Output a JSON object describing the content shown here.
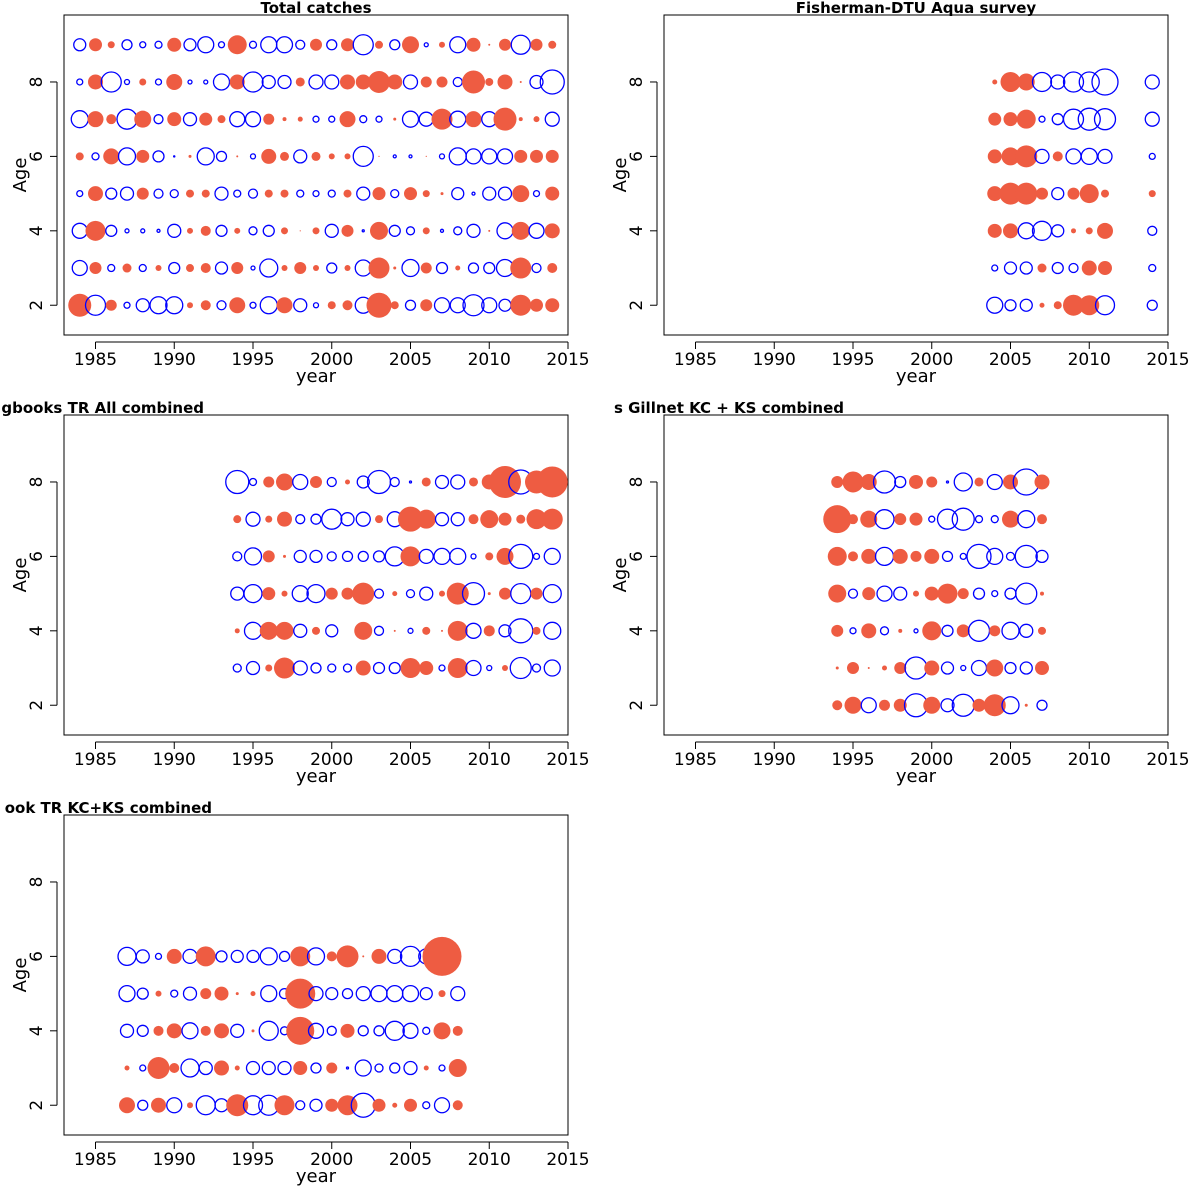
{
  "colors": {
    "positive": "#EE5C42",
    "negative": "#0000FF"
  },
  "chart_data": [
    {
      "type": "scatter",
      "style": "bubble",
      "title": "Total catches",
      "title_align": "center",
      "xlabel": "year",
      "ylabel": "Age",
      "xlim": [
        1983,
        2015
      ],
      "ylim": [
        1.2,
        9.8
      ],
      "xticks": [
        1985,
        1990,
        1995,
        2000,
        2005,
        2010,
        2015
      ],
      "yticks": [
        2,
        4,
        6,
        8
      ],
      "years": [
        1984,
        1985,
        1986,
        1987,
        1988,
        1989,
        1990,
        1991,
        1992,
        1993,
        1994,
        1995,
        1996,
        1997,
        1998,
        1999,
        2000,
        2001,
        2002,
        2003,
        2004,
        2005,
        2006,
        2007,
        2008,
        2009,
        2010,
        2011,
        2012,
        2013,
        2014
      ],
      "ages": [
        2,
        3,
        4,
        5,
        6,
        7,
        8,
        9
      ],
      "residuals": [
        [
          2.3,
          -2.0,
          1.1,
          -0.6,
          -1.3,
          -1.7,
          -1.7,
          0.6,
          1.0,
          -0.9,
          1.6,
          -0.6,
          -1.7,
          1.6,
          -1.3,
          -0.5,
          0.8,
          1.0,
          -1.6,
          2.5,
          0.8,
          -1.0,
          1.2,
          -1.5,
          -1.5,
          -2.1,
          -1.5,
          -1.2,
          2.1,
          1.3,
          1.4
        ],
        [
          -1.5,
          1.2,
          -0.7,
          0.9,
          -0.7,
          0.6,
          -1.1,
          0.8,
          1.0,
          -1.2,
          1.2,
          -0.4,
          -1.8,
          0.6,
          1.2,
          0.6,
          -1.0,
          0.6,
          -1.6,
          2.1,
          0.3,
          -1.7,
          1.1,
          -1.1,
          0.5,
          -1.0,
          -1.1,
          -1.7,
          2.1,
          -0.9,
          1.0
        ],
        [
          -1.5,
          2.0,
          -1.1,
          -0.4,
          -0.4,
          -0.3,
          -1.3,
          0.6,
          1.0,
          -1.1,
          0.6,
          -0.8,
          -1.1,
          0.7,
          0.1,
          0.7,
          -1.3,
          1.2,
          -0.2,
          1.8,
          -1.1,
          -0.8,
          0.7,
          -0.3,
          -0.8,
          -1.3,
          0.2,
          -1.6,
          1.8,
          -1.5,
          1.5
        ],
        [
          -0.6,
          1.5,
          -1.1,
          -1.3,
          1.2,
          -0.9,
          -0.8,
          0.8,
          0.8,
          -1.3,
          -0.7,
          -0.9,
          0.8,
          0.8,
          -0.7,
          -0.6,
          -0.7,
          0.8,
          -1.3,
          1.3,
          -0.8,
          1.3,
          0.7,
          0.3,
          -1.2,
          -0.3,
          -1.3,
          -1.3,
          1.7,
          -0.6,
          1.4
        ],
        [
          0.8,
          -0.7,
          1.6,
          -1.7,
          1.3,
          -1.1,
          -0.1,
          0.3,
          -1.7,
          -1.0,
          0.2,
          -0.5,
          1.5,
          0.9,
          -1.3,
          0.9,
          0.6,
          0.6,
          -2.0,
          0.1,
          -0.3,
          -0.3,
          0.1,
          -0.5,
          -1.7,
          -1.5,
          -1.5,
          -1.5,
          1.3,
          1.3,
          1.3
        ],
        [
          -1.7,
          1.6,
          1.0,
          -2.0,
          1.7,
          -0.9,
          1.4,
          -1.3,
          1.3,
          0.8,
          -1.5,
          -1.5,
          1.1,
          0.4,
          0.5,
          -0.6,
          -0.6,
          1.6,
          -0.7,
          -0.6,
          0.3,
          -1.6,
          -1.4,
          2.1,
          -1.6,
          1.6,
          -1.5,
          2.3,
          0.4,
          0.6,
          -1.4
        ],
        [
          -0.6,
          1.5,
          -2.0,
          -0.5,
          0.7,
          -0.6,
          1.6,
          -0.4,
          -0.4,
          -1.6,
          1.5,
          -2.0,
          -1.3,
          -1.3,
          0.9,
          -1.4,
          -1.4,
          1.5,
          1.5,
          2.2,
          1.5,
          -1.4,
          1.1,
          1.1,
          -0.9,
          2.3,
          0.8,
          1.5,
          0.2,
          -1.3,
          -2.4
        ],
        [
          -1.2,
          1.3,
          0.7,
          -1.0,
          -0.6,
          -0.7,
          1.4,
          -1.2,
          -1.6,
          -0.6,
          1.9,
          -0.7,
          -1.6,
          -1.6,
          -0.9,
          1.2,
          -1.0,
          1.3,
          -2.0,
          0.8,
          -1.0,
          1.7,
          -0.4,
          0.6,
          -1.6,
          1.4,
          0.2,
          1.2,
          -1.9,
          1.2,
          0.8
        ]
      ]
    },
    {
      "type": "scatter",
      "style": "bubble",
      "title": "Fisherman-DTU Aqua survey",
      "title_align": "center",
      "xlabel": "year",
      "ylabel": "Age",
      "xlim": [
        1983,
        2015
      ],
      "ylim": [
        1.2,
        9.8
      ],
      "xticks": [
        1985,
        1990,
        1995,
        2000,
        2005,
        2010,
        2015
      ],
      "yticks": [
        2,
        4,
        6,
        8
      ],
      "years": [
        2004,
        2005,
        2006,
        2007,
        2008,
        2009,
        2010,
        2011,
        2014
      ],
      "ages": [
        2,
        3,
        4,
        5,
        6,
        7,
        8
      ],
      "residuals": [
        [
          -1.6,
          -1.1,
          -1.2,
          0.5,
          0.8,
          2.1,
          2.0,
          -1.9,
          -1.0
        ],
        [
          -0.6,
          -1.2,
          -1.2,
          0.9,
          -1.1,
          -0.9,
          1.5,
          1.4,
          -0.7
        ],
        [
          1.4,
          1.5,
          -1.6,
          -1.9,
          -1.2,
          0.5,
          0.7,
          1.6,
          -0.9
        ],
        [
          1.5,
          2.2,
          2.2,
          1.2,
          -1.2,
          1.2,
          1.9,
          0.8,
          0.7
        ],
        [
          1.4,
          1.8,
          2.2,
          -1.4,
          1.0,
          -1.5,
          -1.6,
          -1.4,
          -0.6
        ],
        [
          1.3,
          1.4,
          1.9,
          -0.6,
          -1.1,
          -2.0,
          -2.2,
          -2.1,
          -1.4
        ],
        [
          0.5,
          2.0,
          1.7,
          -1.9,
          -1.4,
          -2.0,
          -2.0,
          -2.6,
          -1.4
        ]
      ]
    },
    {
      "type": "scatter",
      "style": "bubble",
      "title": "gbooks TR All combined",
      "title_align": "clipped-left",
      "xlabel": "year",
      "ylabel": "Age",
      "xlim": [
        1983,
        2015
      ],
      "ylim": [
        1.2,
        9.8
      ],
      "xticks": [
        1985,
        1990,
        1995,
        2000,
        2005,
        2010,
        2015
      ],
      "yticks": [
        2,
        4,
        6,
        8
      ],
      "years": [
        1994,
        1995,
        1996,
        1997,
        1998,
        1999,
        2000,
        2001,
        2002,
        2003,
        2004,
        2005,
        2006,
        2007,
        2008,
        2009,
        2010,
        2011,
        2012,
        2013,
        2014
      ],
      "ages": [
        3,
        4,
        5,
        6,
        7,
        8
      ],
      "residuals": [
        [
          -0.8,
          -1.3,
          0.7,
          2.1,
          -1.4,
          -1.0,
          -0.8,
          -0.8,
          1.5,
          -1.1,
          -1.1,
          2.0,
          1.4,
          -0.6,
          2.0,
          -1.5,
          -0.5,
          0.6,
          -2.1,
          -0.8,
          -1.6
        ],
        [
          0.5,
          -1.7,
          1.8,
          1.8,
          -1.3,
          0.8,
          -1.2,
          null,
          1.8,
          -0.9,
          0.2,
          -0.5,
          0.8,
          0.2,
          2.0,
          -1.5,
          1.1,
          -1.2,
          -2.4,
          0.8,
          -1.7
        ],
        [
          -1.3,
          -1.8,
          1.3,
          0.6,
          -1.6,
          -1.8,
          1.2,
          1.2,
          2.2,
          -0.9,
          0.5,
          -0.8,
          -1.3,
          0.6,
          2.2,
          -2.2,
          0.3,
          1.2,
          -2.0,
          1.2,
          -1.8
        ],
        [
          -0.9,
          -1.7,
          1.2,
          0.3,
          -1.2,
          -1.2,
          -0.9,
          -1.0,
          -1.0,
          -1.1,
          -1.9,
          2.0,
          -1.4,
          -1.6,
          -1.6,
          -0.5,
          0.8,
          1.7,
          -2.4,
          -0.6,
          -1.6
        ],
        [
          0.8,
          -1.4,
          0.7,
          1.5,
          -0.9,
          -1.0,
          -2.0,
          -1.3,
          -1.4,
          0.8,
          -1.5,
          2.5,
          1.9,
          -1.3,
          -1.3,
          1.0,
          1.8,
          1.3,
          0.9,
          2.0,
          2.1
        ],
        [
          -2.3,
          -0.7,
          1.1,
          1.7,
          -1.5,
          1.2,
          -0.9,
          0.5,
          -1.2,
          -2.3,
          -0.9,
          -0.2,
          0.9,
          -1.3,
          -1.4,
          0.9,
          1.5,
          3.2,
          -2.4,
          2.3,
          3.1
        ]
      ]
    },
    {
      "type": "scatter",
      "style": "bubble",
      "title": "s Gillnet KC + KS combined",
      "title_align": "clipped-left",
      "xlabel": "year",
      "ylabel": "Age",
      "xlim": [
        1983,
        2015
      ],
      "ylim": [
        1.2,
        9.8
      ],
      "xticks": [
        1985,
        1990,
        1995,
        2000,
        2005,
        2010,
        2015
      ],
      "yticks": [
        2,
        4,
        6,
        8
      ],
      "years": [
        1994,
        1995,
        1996,
        1997,
        1998,
        1999,
        2000,
        2001,
        2002,
        2003,
        2004,
        2005,
        2006,
        2007
      ],
      "ages": [
        2,
        3,
        4,
        5,
        6,
        7,
        8
      ],
      "residuals": [
        [
          1.0,
          1.7,
          -1.5,
          1.1,
          1.3,
          -2.3,
          1.7,
          -1.3,
          -2.2,
          1.3,
          2.2,
          -1.7,
          0.3,
          -1.0
        ],
        [
          0.3,
          1.2,
          0.2,
          0.5,
          1.2,
          -2.2,
          1.5,
          -1.2,
          -0.5,
          -1.5,
          1.7,
          -1.1,
          -1.2,
          1.4
        ],
        [
          1.2,
          -0.6,
          1.5,
          -0.8,
          0.4,
          -0.4,
          1.9,
          -1.1,
          1.3,
          -2.1,
          1.1,
          -1.7,
          -1.3,
          0.8
        ],
        [
          1.8,
          -0.9,
          1.3,
          -1.5,
          -1.3,
          0.6,
          1.4,
          2.0,
          1.1,
          -1.1,
          -0.6,
          -1.1,
          -2.1,
          0.4
        ],
        [
          1.9,
          1.0,
          1.5,
          -1.8,
          1.5,
          1.1,
          1.5,
          -1.0,
          -0.6,
          -2.4,
          -1.6,
          -0.8,
          -2.2,
          -1.2
        ],
        [
          2.8,
          1.0,
          1.7,
          -1.9,
          1.2,
          1.3,
          -0.6,
          -2.0,
          -2.2,
          -0.7,
          -0.7,
          1.7,
          -1.7,
          1.0
        ],
        [
          1.2,
          2.1,
          1.6,
          -2.2,
          -1.1,
          1.4,
          1.1,
          -0.2,
          -1.8,
          0.9,
          -1.5,
          1.5,
          -2.6,
          1.5
        ]
      ]
    },
    {
      "type": "scatter",
      "style": "bubble",
      "title": "ook TR KC+KS combined",
      "title_align": "clipped-left",
      "xlabel": "year",
      "ylabel": "Age",
      "xlim": [
        1983,
        2015
      ],
      "ylim": [
        1.2,
        9.8
      ],
      "xticks": [
        1985,
        1990,
        1995,
        2000,
        2005,
        2010,
        2015
      ],
      "yticks": [
        2,
        4,
        6,
        8
      ],
      "years": [
        1987,
        1988,
        1989,
        1990,
        1991,
        1992,
        1993,
        1994,
        1995,
        1996,
        1997,
        1998,
        1999,
        2000,
        2001,
        2002,
        2003,
        2004,
        2005,
        2006,
        2007,
        2008
      ],
      "ages": [
        2,
        3,
        4,
        5,
        6
      ],
      "residuals": [
        [
          1.6,
          -1.0,
          1.5,
          -1.5,
          0.6,
          -1.9,
          -1.3,
          2.2,
          -1.9,
          -2.0,
          2.0,
          -0.9,
          -1.2,
          1.3,
          2.0,
          -2.4,
          1.3,
          0.5,
          1.3,
          -0.7,
          -1.5,
          1.0
        ],
        [
          0.5,
          -0.6,
          2.2,
          1.0,
          -1.8,
          -1.3,
          1.5,
          0.5,
          -1.3,
          -1.3,
          -1.3,
          1.4,
          -1.0,
          1.1,
          -0.2,
          -1.6,
          -0.8,
          -1.0,
          -1.3,
          0.5,
          -0.6,
          1.8
        ],
        [
          -1.3,
          -1.1,
          1.0,
          1.5,
          -1.6,
          1.0,
          1.5,
          -1.3,
          0.3,
          -1.9,
          -0.8,
          2.8,
          -1.5,
          -0.9,
          1.4,
          -1.0,
          -1.0,
          -1.9,
          -1.5,
          -0.7,
          1.7,
          1.0
        ],
        [
          -1.6,
          -1.1,
          0.6,
          -0.7,
          -1.3,
          1.1,
          1.4,
          0.3,
          0.5,
          -1.6,
          -1.0,
          3.0,
          -1.4,
          -1.2,
          -1.0,
          -1.4,
          -1.6,
          -1.6,
          -1.6,
          -1.2,
          0.7,
          -1.4
        ],
        [
          -1.8,
          -1.3,
          -0.6,
          1.5,
          -1.4,
          2.0,
          -1.1,
          -1.2,
          -1.2,
          -1.7,
          -1.0,
          2.0,
          -1.7,
          1.0,
          2.2,
          0.2,
          1.5,
          -1.4,
          -2.0,
          -1.5,
          3.9,
          null
        ]
      ]
    }
  ]
}
